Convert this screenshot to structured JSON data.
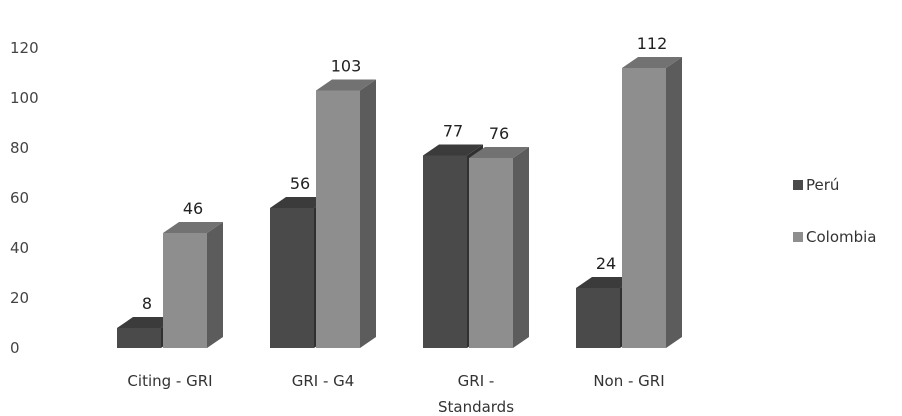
{
  "chart_data": {
    "type": "bar",
    "categories": [
      "Citing - GRI",
      "GRI - G4",
      "GRI - Standards",
      "Non - GRI"
    ],
    "series": [
      {
        "name": "Perú",
        "values": [
          8,
          56,
          77,
          24
        ],
        "color": "#4a4a4a"
      },
      {
        "name": "Colombia",
        "values": [
          46,
          103,
          76,
          112
        ],
        "color": "#8e8e8e"
      }
    ],
    "ylim": [
      0,
      120
    ],
    "yticks": [
      0,
      20,
      40,
      60,
      80,
      100,
      120
    ],
    "grid": false,
    "legend": "right",
    "data_labels": true,
    "style": "3d-clustered-column"
  }
}
